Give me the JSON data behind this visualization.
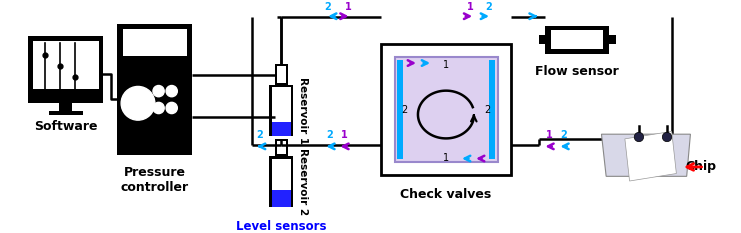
{
  "bg_color": "#ffffff",
  "line_color": "#000000",
  "cyan": "#00aaff",
  "purple": "#9900cc",
  "blue": "#0000ff",
  "red": "#ff0000",
  "label_software": "Software",
  "label_pressure": "Pressure\ncontroller",
  "label_reservoir1": "Reservoir 1",
  "label_reservoir2": "Reservoir 2",
  "label_check_valves": "Check valves",
  "label_flow_sensor": "Flow sensor",
  "label_level_sensors": "Level sensors",
  "label_chip": "Chip",
  "figw": 7.41,
  "figh": 2.33,
  "dpi": 100
}
